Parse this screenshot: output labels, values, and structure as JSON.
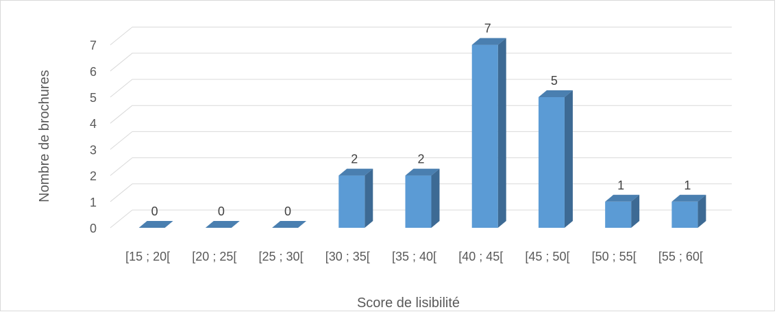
{
  "chart_data": {
    "type": "bar",
    "title": "",
    "xlabel": "Score de lisibilité",
    "ylabel": "Nombre de brochures",
    "categories": [
      "[15 ; 20[",
      "[20 ; 25[",
      "[25 ; 30[",
      "[30 ; 35[",
      "[35 ; 40[",
      "[40 ; 45[",
      "[45 ; 50[",
      "[50 ; 55[",
      "[55 ; 60["
    ],
    "values": [
      0,
      0,
      0,
      2,
      2,
      7,
      5,
      1,
      1
    ],
    "ylim": [
      0,
      7
    ],
    "yticks": [
      0,
      1,
      2,
      3,
      4,
      5,
      6,
      7
    ],
    "grid": true,
    "legend": "none",
    "data_labels": true,
    "style": "3d-column",
    "colors": {
      "front": "#5b9bd5",
      "side": "#3d6a94",
      "top": "#4a7fb0",
      "grid": "#d9d9d9"
    }
  }
}
